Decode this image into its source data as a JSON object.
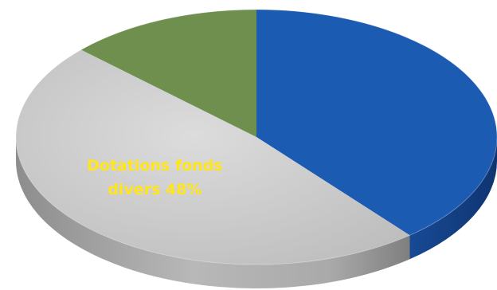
{
  "chart_data": {
    "type": "pie",
    "style": "3d",
    "slices": [
      {
        "label": "",
        "value": 39,
        "color": "#1c5bb2"
      },
      {
        "label": "Dotations fonds divers 48%",
        "label_lines": [
          "Dotations fonds",
          "divers 48%"
        ],
        "value": 48,
        "color": "#c9c9c9"
      },
      {
        "label": "",
        "value": 13,
        "color": "#6f8f4f"
      }
    ],
    "start_angle_deg": 0,
    "label_color": "#ffe51a"
  }
}
